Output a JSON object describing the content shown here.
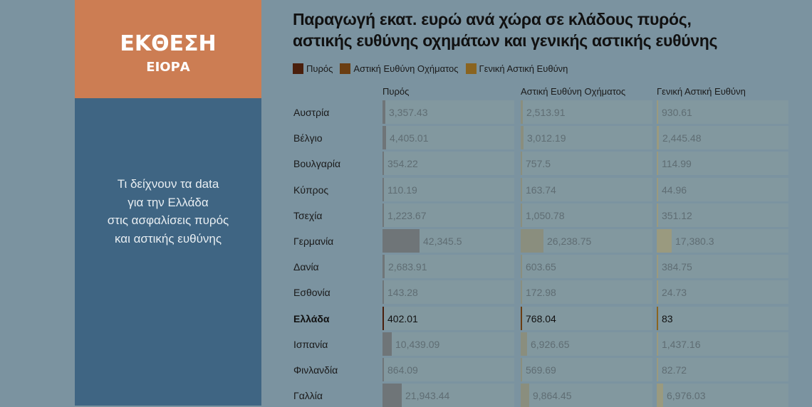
{
  "panel": {
    "title": "ΕΚΘΕΣΗ",
    "subtitle": "ΕΙΟΡΑ",
    "description_lines": [
      "Τι δείχνουν τα data",
      "για την Ελλάδα",
      "στις ασφαλίσεις πυρός",
      "και αστικής ευθύνης"
    ],
    "colors": {
      "orange": "#cc7d53",
      "blue": "#3f6583"
    }
  },
  "chart_data": {
    "type": "table",
    "title_lines": [
      "Παραγωγή εκατ. ευρώ ανά χώρα σε κλάδους πυρός,",
      "αστικής ευθύνης οχημάτων και γενικής αστικής ευθύνης"
    ],
    "legend": [
      {
        "name": "Πυρός",
        "color": "#4a1f0c"
      },
      {
        "name": "Αστική Ευθύνη Οχήματος",
        "color": "#6b3e12"
      },
      {
        "name": "Γενική Αστική Ευθύνη",
        "color": "#8a6420"
      }
    ],
    "columns": [
      "Πυρός",
      "Αστική Ευθύνη Οχήματος",
      "Γενική Αστική Ευθύνη"
    ],
    "highlight": "Ελλάδα",
    "rows": [
      {
        "country": "Αυστρία",
        "values": [
          3357.43,
          2513.91,
          930.61
        ],
        "labels": [
          "3,357.43",
          "2,513.91",
          "930.61"
        ]
      },
      {
        "country": "Βέλγιο",
        "values": [
          4405.01,
          3012.19,
          2445.48
        ],
        "labels": [
          "4,405.01",
          "3,012.19",
          "2,445.48"
        ]
      },
      {
        "country": "Βουλγαρία",
        "values": [
          354.22,
          757.5,
          114.99
        ],
        "labels": [
          "354.22",
          "757.5",
          "114.99"
        ]
      },
      {
        "country": "Κύπρος",
        "values": [
          110.19,
          163.74,
          44.96
        ],
        "labels": [
          "110.19",
          "163.74",
          "44.96"
        ]
      },
      {
        "country": "Τσεχία",
        "values": [
          1223.67,
          1050.78,
          351.12
        ],
        "labels": [
          "1,223.67",
          "1,050.78",
          "351.12"
        ]
      },
      {
        "country": "Γερμανία",
        "values": [
          42345.5,
          26238.75,
          17380.3
        ],
        "labels": [
          "42,345.5",
          "26,238.75",
          "17,380.3"
        ]
      },
      {
        "country": "Δανία",
        "values": [
          2683.91,
          603.65,
          384.75
        ],
        "labels": [
          "2,683.91",
          "603.65",
          "384.75"
        ]
      },
      {
        "country": "Εσθονία",
        "values": [
          143.28,
          172.98,
          24.73
        ],
        "labels": [
          "143.28",
          "172.98",
          "24.73"
        ]
      },
      {
        "country": "Ελλάδα",
        "values": [
          402.01,
          768.04,
          83
        ],
        "labels": [
          "402.01",
          "768.04",
          "83"
        ]
      },
      {
        "country": "Ισπανία",
        "values": [
          10439.09,
          6926.65,
          1437.16
        ],
        "labels": [
          "10,439.09",
          "6,926.65",
          "1,437.16"
        ]
      },
      {
        "country": "Φινλανδία",
        "values": [
          864.09,
          569.69,
          82.72
        ],
        "labels": [
          "864.09",
          "569.69",
          "82.72"
        ]
      },
      {
        "country": "Γαλλία",
        "values": [
          21943.44,
          9864.45,
          6976.03
        ],
        "labels": [
          "21,943.44",
          "9,864.45",
          "6,976.03"
        ]
      }
    ],
    "muted_bar_colors": [
      "#6f7578",
      "#8a8e7e",
      "#9a9a7f"
    ]
  }
}
